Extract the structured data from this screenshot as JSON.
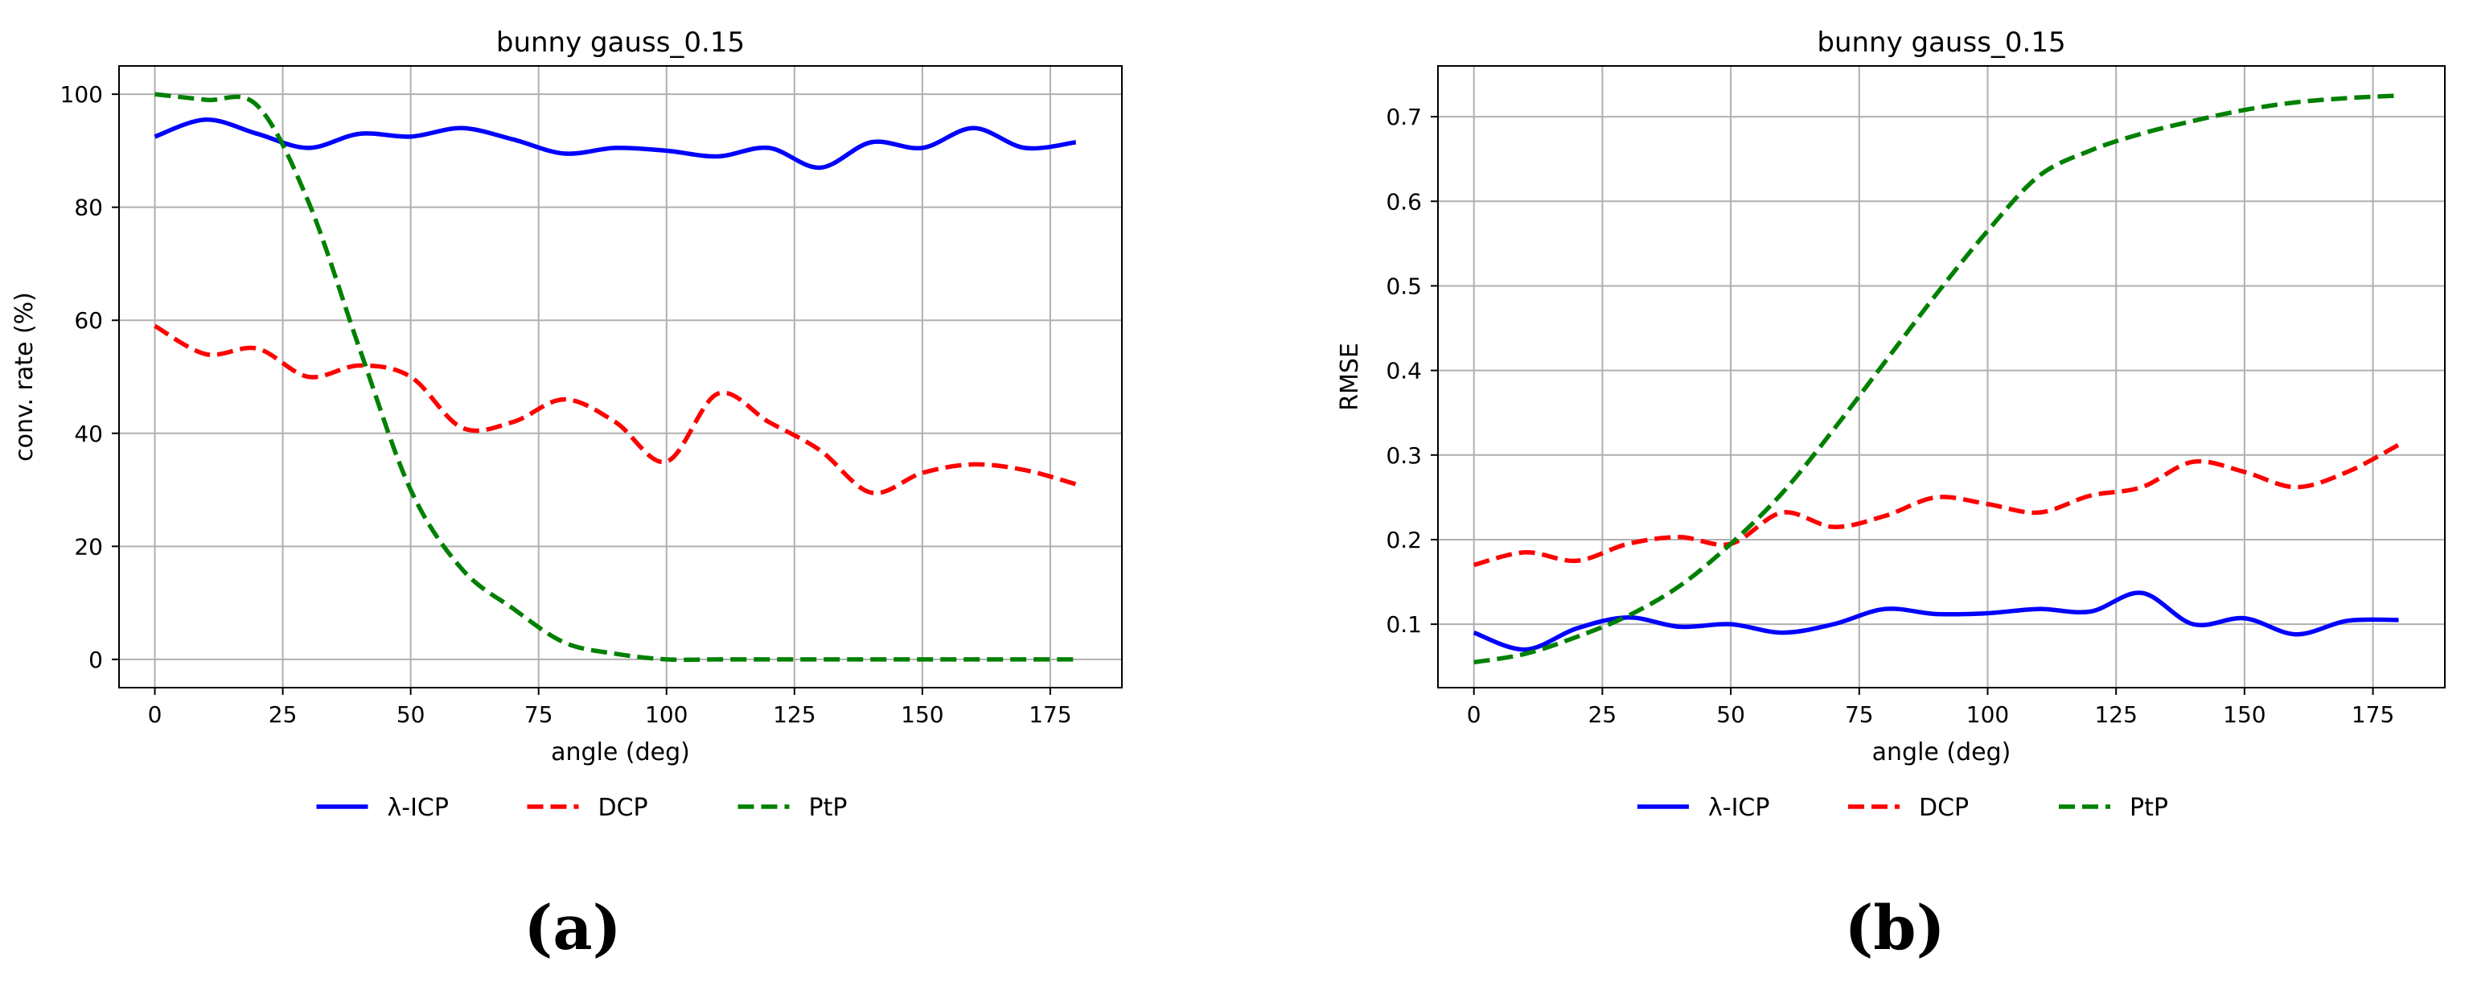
{
  "panels": [
    {
      "caption": "(a)"
    },
    {
      "caption": "(b)"
    }
  ],
  "chart_data": [
    {
      "type": "line",
      "title": "bunny gauss_0.15",
      "xlabel": "angle (deg)",
      "ylabel": "conv. rate (%)",
      "xlim": [
        -7,
        189
      ],
      "ylim": [
        -5,
        105
      ],
      "xticks": [
        0,
        25,
        50,
        75,
        100,
        125,
        150,
        175
      ],
      "yticks": [
        0,
        20,
        40,
        60,
        80,
        100
      ],
      "grid": true,
      "legend_position": "bottom-center",
      "x": [
        0,
        10,
        20,
        30,
        40,
        50,
        60,
        70,
        80,
        90,
        100,
        110,
        120,
        130,
        140,
        150,
        160,
        170,
        180
      ],
      "series": [
        {
          "name": "λ-ICP",
          "color": "#0000ff",
          "dash": "solid",
          "values": [
            92.5,
            95.5,
            93,
            90.5,
            93,
            92.5,
            94,
            92,
            89.5,
            90.5,
            90,
            89,
            90.5,
            87,
            91.5,
            90.5,
            94,
            90.5,
            91.5
          ]
        },
        {
          "name": "DCP",
          "color": "#ff0000",
          "dash": "dashed",
          "values": [
            59,
            54,
            55,
            50,
            52,
            50,
            41,
            42,
            46,
            42,
            35,
            47,
            42,
            37,
            29.5,
            33,
            34.5,
            33.5,
            31
          ]
        },
        {
          "name": "PtP",
          "color": "#008000",
          "dash": "dashed",
          "values": [
            100,
            99,
            98,
            81,
            55,
            30,
            16,
            9,
            3,
            1,
            0,
            0,
            0,
            0,
            0,
            0,
            0,
            0,
            0
          ]
        }
      ]
    },
    {
      "type": "line",
      "title": "bunny gauss_0.15",
      "xlabel": "angle (deg)",
      "ylabel": "RMSE",
      "xlim": [
        -7,
        189
      ],
      "ylim": [
        0.025,
        0.76
      ],
      "xticks": [
        0,
        25,
        50,
        75,
        100,
        125,
        150,
        175
      ],
      "yticks": [
        0.1,
        0.2,
        0.3,
        0.4,
        0.5,
        0.6,
        0.7
      ],
      "grid": true,
      "legend_position": "bottom-center",
      "x": [
        0,
        10,
        20,
        30,
        40,
        50,
        60,
        70,
        80,
        90,
        100,
        110,
        120,
        130,
        140,
        150,
        160,
        170,
        180
      ],
      "series": [
        {
          "name": "λ-ICP",
          "color": "#0000ff",
          "dash": "solid",
          "values": [
            0.09,
            0.07,
            0.095,
            0.108,
            0.097,
            0.1,
            0.09,
            0.1,
            0.118,
            0.112,
            0.113,
            0.118,
            0.115,
            0.137,
            0.1,
            0.107,
            0.088,
            0.104,
            0.105
          ]
        },
        {
          "name": "DCP",
          "color": "#ff0000",
          "dash": "dashed",
          "values": [
            0.17,
            0.185,
            0.175,
            0.195,
            0.203,
            0.195,
            0.232,
            0.215,
            0.228,
            0.25,
            0.242,
            0.232,
            0.252,
            0.262,
            0.292,
            0.28,
            0.262,
            0.28,
            0.312
          ]
        },
        {
          "name": "PtP",
          "color": "#008000",
          "dash": "dashed",
          "values": [
            0.055,
            0.065,
            0.085,
            0.11,
            0.145,
            0.195,
            0.255,
            0.33,
            0.41,
            0.49,
            0.565,
            0.63,
            0.66,
            0.68,
            0.695,
            0.708,
            0.717,
            0.722,
            0.725
          ]
        }
      ]
    }
  ]
}
